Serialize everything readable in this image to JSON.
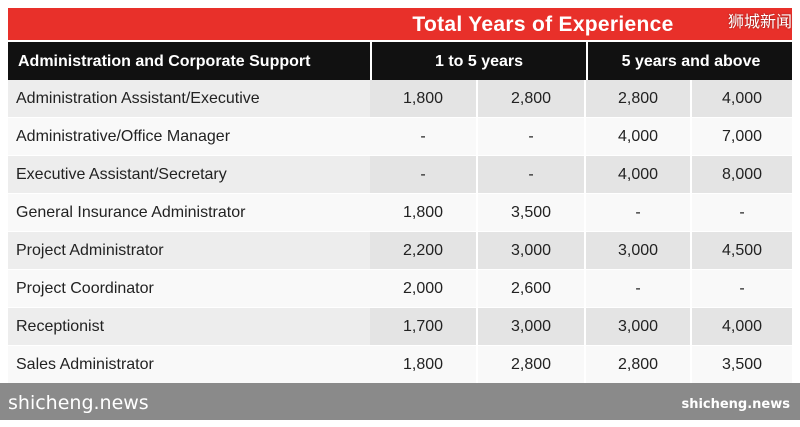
{
  "table": {
    "title": "Total Years of Experience",
    "header": {
      "category": "Administration and Corporate Support",
      "range1": "1 to 5 years",
      "range2": "5 years and above"
    },
    "rows": [
      {
        "role": "Administration Assistant/Executive",
        "v1": "1,800",
        "v2": "2,800",
        "v3": "2,800",
        "v4": "4,000"
      },
      {
        "role": "Administrative/Office Manager",
        "v1": "-",
        "v2": "-",
        "v3": "4,000",
        "v4": "7,000"
      },
      {
        "role": "Executive Assistant/Secretary",
        "v1": "-",
        "v2": "-",
        "v3": "4,000",
        "v4": "8,000"
      },
      {
        "role": "General Insurance Administrator",
        "v1": "1,800",
        "v2": "3,500",
        "v3": "-",
        "v4": "-"
      },
      {
        "role": "Project Administrator",
        "v1": "2,200",
        "v2": "3,000",
        "v3": "3,000",
        "v4": "4,500"
      },
      {
        "role": "Project Coordinator",
        "v1": "2,000",
        "v2": "2,600",
        "v3": "-",
        "v4": "-"
      },
      {
        "role": "Receptionist",
        "v1": "1,700",
        "v2": "3,000",
        "v3": "3,000",
        "v4": "4,000"
      },
      {
        "role": "Sales Administrator",
        "v1": "1,800",
        "v2": "2,800",
        "v3": "2,800",
        "v4": "3,500"
      }
    ]
  },
  "watermark": {
    "top_right": "狮城新闻",
    "bottom_left": "shicheng.news",
    "bottom_right": "shicheng.news"
  },
  "colors": {
    "accent": "#e8302a",
    "header": "#111111",
    "footer": "#8a8a8a"
  }
}
